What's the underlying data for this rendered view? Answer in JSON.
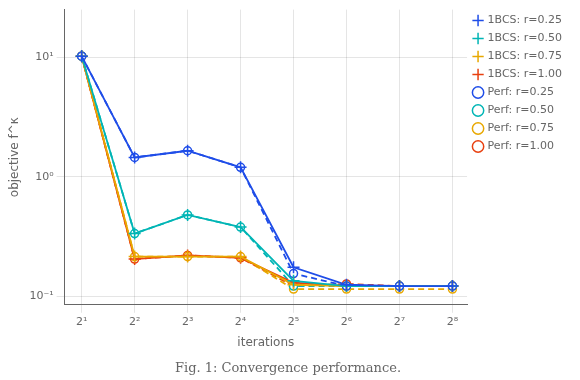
{
  "chart_data": {
    "type": "line",
    "title": "Fig. 1: Convergence performance.",
    "x_label": "iterations",
    "y_label": "objective f^κ",
    "x": [
      2,
      4,
      8,
      16,
      32,
      64,
      128,
      256
    ],
    "series": [
      {
        "name": "1BCS: r=0.25",
        "color": "#1f4de8",
        "marker": "+",
        "line_style": "-",
        "values": [
          10.2,
          1.45,
          1.65,
          1.2,
          0.175,
          0.125,
          0.122,
          0.122
        ]
      },
      {
        "name": "1BCS: r=0.50",
        "color": "#00b5b5",
        "marker": "+",
        "line_style": "-",
        "values": [
          10.2,
          0.335,
          0.48,
          0.38,
          0.135,
          0.122,
          0.122,
          0.122
        ]
      },
      {
        "name": "1BCS: r=0.75",
        "color": "#e8a800",
        "marker": "+",
        "line_style": "-",
        "values": [
          10.2,
          0.215,
          0.215,
          0.215,
          0.125,
          0.122,
          0.122,
          0.122
        ]
      },
      {
        "name": "1BCS: r=1.00",
        "color": "#e84010",
        "marker": "+",
        "line_style": "-",
        "values": [
          10.2,
          0.205,
          0.22,
          0.21,
          0.13,
          0.122,
          0.122,
          0.122
        ]
      },
      {
        "name": "Perf: r=0.25",
        "color": "#1f4de8",
        "marker": "o",
        "line_style": "--",
        "values": [
          10.2,
          1.45,
          1.65,
          1.2,
          0.155,
          0.122,
          0.122,
          0.122
        ]
      },
      {
        "name": "Perf: r=0.50",
        "color": "#00b5b5",
        "marker": "o",
        "line_style": "--",
        "values": [
          10.2,
          0.335,
          0.48,
          0.38,
          0.122,
          0.122,
          0.122,
          0.122
        ]
      },
      {
        "name": "Perf: r=0.75",
        "color": "#e8a800",
        "marker": "o",
        "line_style": "--",
        "values": [
          10.2,
          0.215,
          0.215,
          0.215,
          0.115,
          0.115,
          0.115,
          0.115
        ]
      },
      {
        "name": "Perf: r=1.00",
        "color": "#e84010",
        "marker": "o",
        "line_style": "--",
        "values": [
          10.2,
          0.205,
          0.22,
          0.21,
          0.122,
          0.127,
          0.122,
          0.122
        ]
      }
    ],
    "log": true,
    "xlim": [
      1.6,
      310
    ],
    "ylim": [
      0.085,
      25
    ],
    "xticks": [
      {
        "value": 2,
        "label": "2¹"
      },
      {
        "value": 4,
        "label": "2²"
      },
      {
        "value": 8,
        "label": "2³"
      },
      {
        "value": 16,
        "label": "2⁴"
      },
      {
        "value": 32,
        "label": "2⁵"
      },
      {
        "value": 64,
        "label": "2⁶"
      },
      {
        "value": 128,
        "label": "2⁷"
      },
      {
        "value": 256,
        "label": "2⁸"
      }
    ],
    "yticks": [
      {
        "value": 0.1,
        "label": "10⁻¹"
      },
      {
        "value": 1,
        "label": "10⁰"
      },
      {
        "value": 10,
        "label": "10¹"
      }
    ],
    "grid": true,
    "legend": "upper right"
  }
}
